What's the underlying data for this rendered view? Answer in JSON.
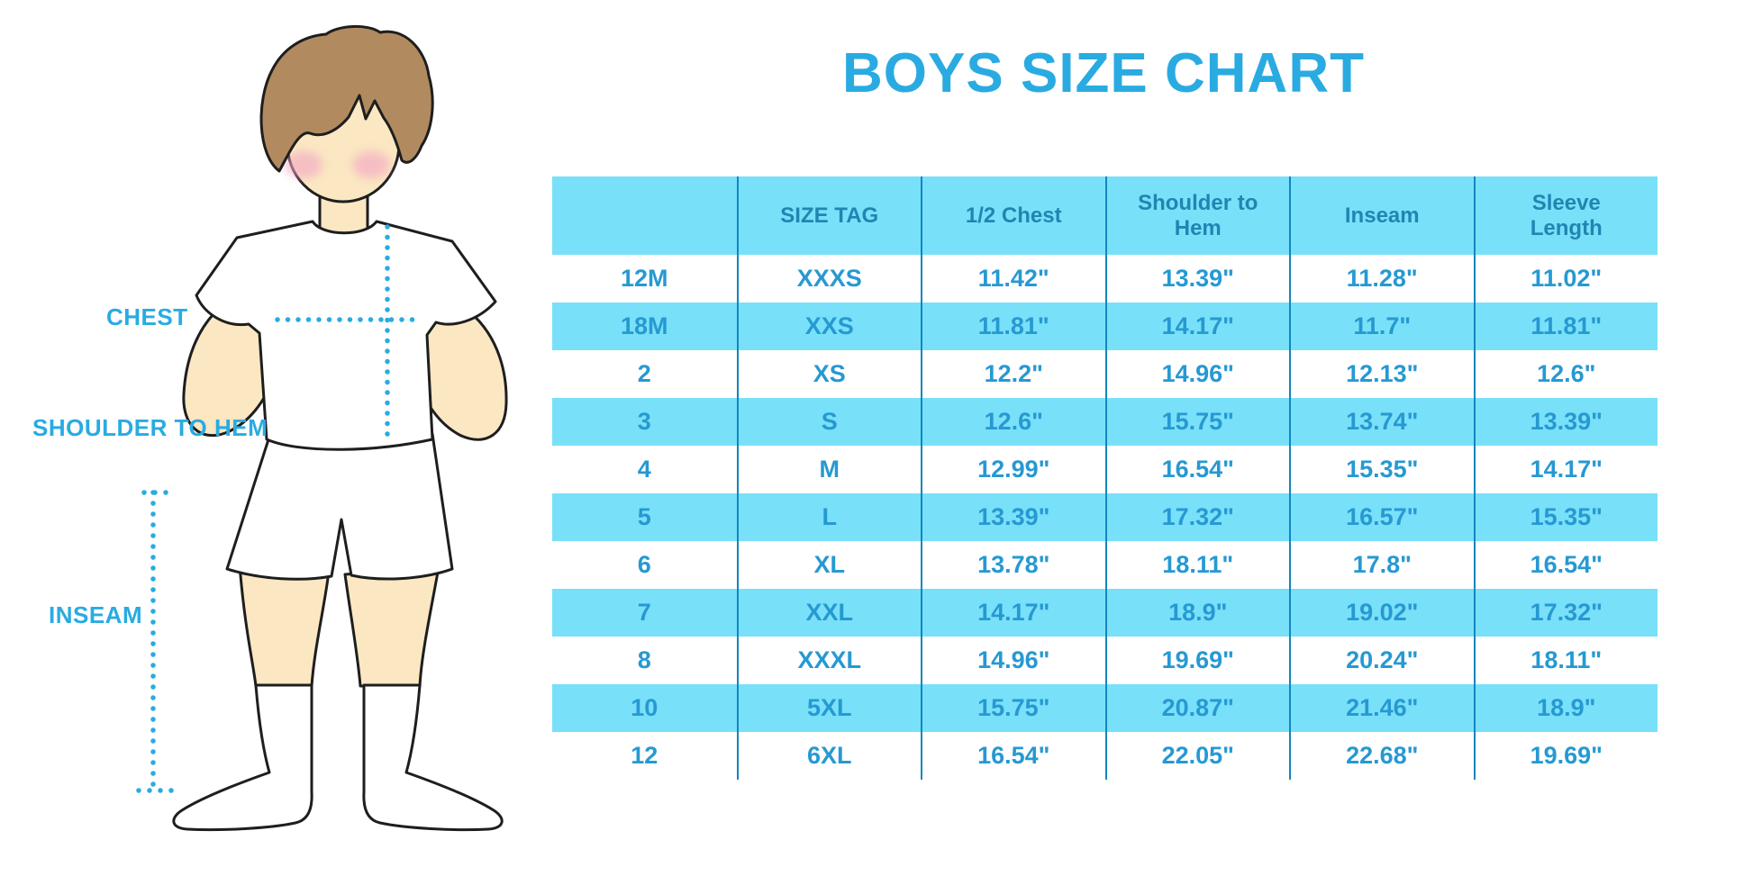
{
  "title": "BOYS SIZE CHART",
  "colors": {
    "accent_blue": "#29ABE2",
    "band_blue": "#79E0F9",
    "divider_blue": "#1186BE",
    "header_text": "#1F86B2",
    "cell_text": "#2699D2",
    "skin": "#FBE7C2",
    "hair": "#B18B5F"
  },
  "figure": {
    "illustration": "boy-with-measurement-lines",
    "labels": {
      "chest": "CHEST",
      "shoulder_to_hem": "SHOULDER TO HEM",
      "inseam": "INSEAM"
    }
  },
  "table": {
    "headers": [
      "",
      "SIZE TAG",
      "1/2 Chest",
      "Shoulder to Hem",
      "Inseam",
      "Sleeve Length"
    ],
    "rows": [
      [
        "12M",
        "XXXS",
        "11.42\"",
        "13.39\"",
        "11.28\"",
        "11.02\""
      ],
      [
        "18M",
        "XXS",
        "11.81\"",
        "14.17\"",
        "11.7\"",
        "11.81\""
      ],
      [
        "2",
        "XS",
        "12.2\"",
        "14.96\"",
        "12.13\"",
        "12.6\""
      ],
      [
        "3",
        "S",
        "12.6\"",
        "15.75\"",
        "13.74\"",
        "13.39\""
      ],
      [
        "4",
        "M",
        "12.99\"",
        "16.54\"",
        "15.35\"",
        "14.17\""
      ],
      [
        "5",
        "L",
        "13.39\"",
        "17.32\"",
        "16.57\"",
        "15.35\""
      ],
      [
        "6",
        "XL",
        "13.78\"",
        "18.11\"",
        "17.8\"",
        "16.54\""
      ],
      [
        "7",
        "XXL",
        "14.17\"",
        "18.9\"",
        "19.02\"",
        "17.32\""
      ],
      [
        "8",
        "XXXL",
        "14.96\"",
        "19.69\"",
        "20.24\"",
        "18.11\""
      ],
      [
        "10",
        "5XL",
        "15.75\"",
        "20.87\"",
        "21.46\"",
        "18.9\""
      ],
      [
        "12",
        "6XL",
        "16.54\"",
        "22.05\"",
        "22.68\"",
        "19.69\""
      ]
    ]
  }
}
